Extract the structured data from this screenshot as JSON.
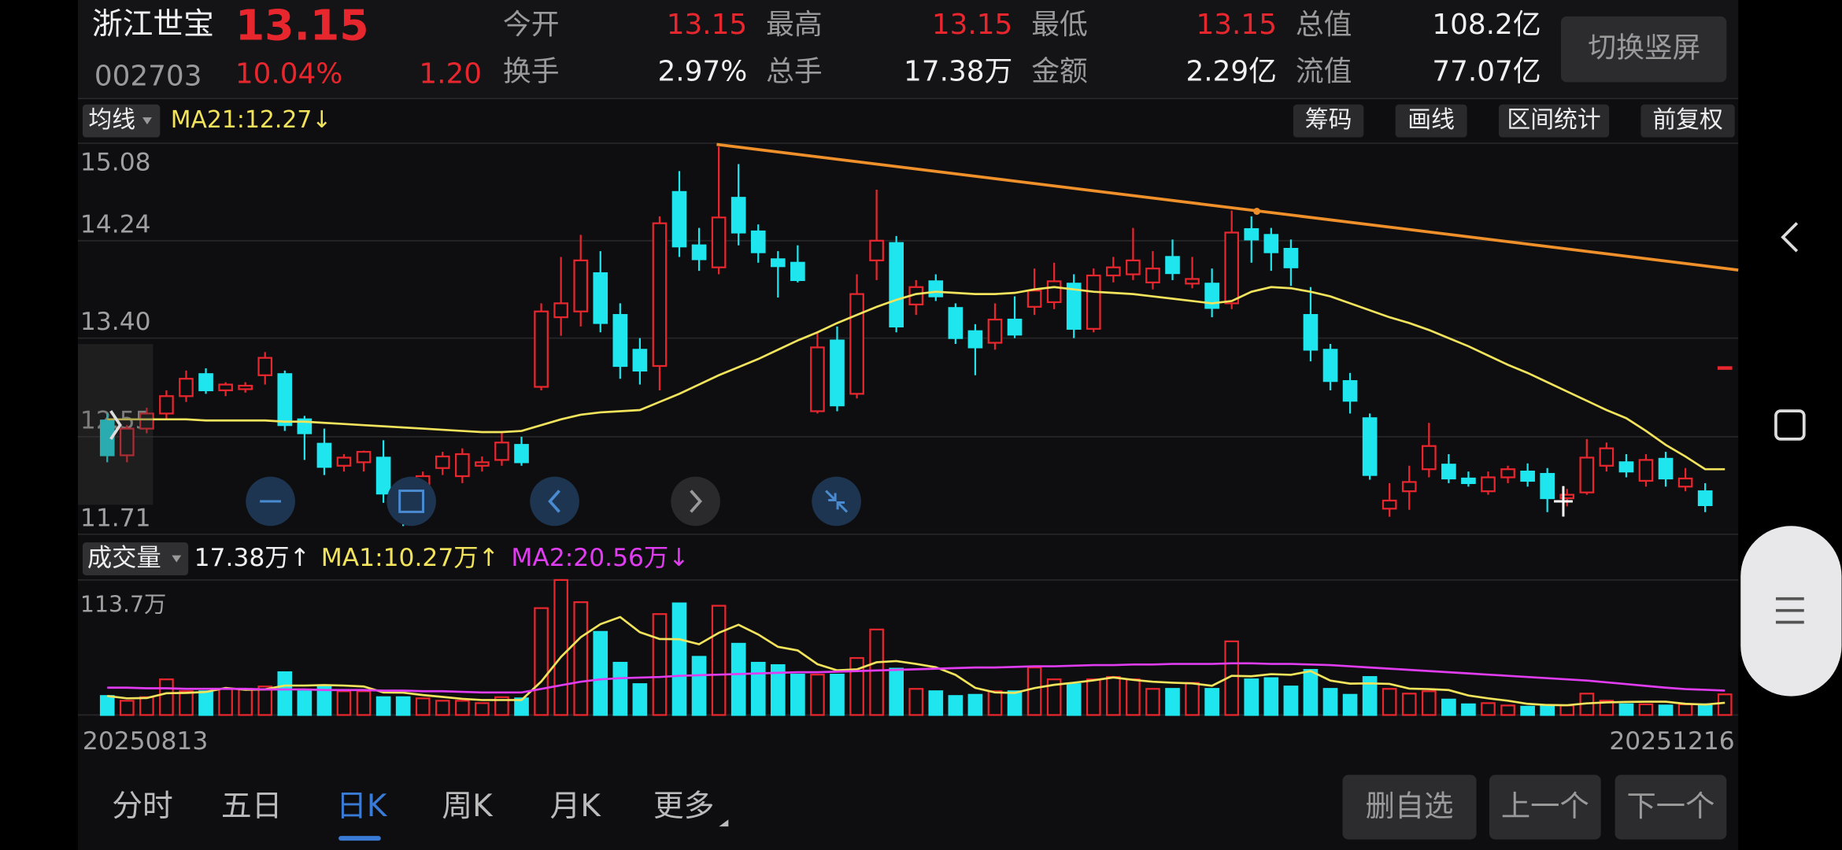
{
  "header": {
    "name": "浙江世宝",
    "price": "13.15",
    "code": "002703",
    "change_pct": "10.04%",
    "change": "1.20",
    "stats": [
      {
        "label": "今开",
        "value": "13.15"
      },
      {
        "label": "最高",
        "value": "13.15"
      },
      {
        "label": "最低",
        "value": "13.15"
      },
      {
        "label": "总值",
        "value": "108.2亿"
      },
      {
        "label": "换手",
        "value": "2.97%"
      },
      {
        "label": "总手",
        "value": "17.38万"
      },
      {
        "label": "金额",
        "value": "2.29亿"
      },
      {
        "label": "流值",
        "value": "77.07亿"
      }
    ],
    "orientation_button": "切换竖屏"
  },
  "toolbar": {
    "ma_selector": "均线",
    "ma_label": "MA21:12.27↓",
    "tools": [
      "筹码",
      "画线",
      "区间统计",
      "前复权"
    ]
  },
  "volume_header": {
    "selector": "成交量",
    "volume": "17.38万↑",
    "ma1": "MA1:10.27万↑",
    "ma2": "MA2:20.56万↓"
  },
  "chart_data": [
    {
      "type": "candlestick",
      "up_color": "#e8262e",
      "down_color": "#1fe6ee",
      "categories": [
        "20250813",
        null,
        null,
        null,
        null,
        null,
        null,
        null,
        null,
        null,
        null,
        null,
        null,
        null,
        null,
        null,
        null,
        null,
        null,
        null,
        null,
        null,
        null,
        null,
        null,
        null,
        null,
        null,
        null,
        null,
        null,
        null,
        null,
        null,
        null,
        null,
        null,
        null,
        null,
        null,
        null,
        null,
        null,
        null,
        null,
        null,
        null,
        null,
        null,
        null,
        null,
        null,
        null,
        null,
        null,
        null,
        null,
        null,
        null,
        null,
        null,
        null,
        null,
        null,
        null,
        null,
        null,
        null,
        null,
        null,
        null,
        null,
        null,
        null,
        null,
        null,
        null,
        null,
        null,
        null,
        null,
        null,
        "20251216"
      ],
      "open": [
        12.69,
        12.39,
        12.62,
        12.75,
        12.9,
        13.09,
        12.95,
        12.96,
        13.08,
        13.09,
        12.7,
        12.49,
        12.3,
        12.33,
        12.37,
        12.08,
        11.91,
        12.28,
        12.21,
        12.3,
        12.35,
        12.48,
        12.98,
        13.58,
        13.63,
        13.96,
        13.6,
        13.3,
        13.16,
        14.66,
        14.2,
        14.01,
        14.61,
        14.32,
        14.08,
        14.05,
        12.77,
        13.38,
        12.92,
        14.07,
        14.22,
        13.69,
        13.89,
        13.66,
        13.46,
        13.36,
        13.56,
        13.67,
        13.71,
        13.87,
        13.48,
        13.94,
        13.95,
        13.88,
        14.1,
        13.87,
        13.87,
        13.7,
        14.34,
        14.29,
        14.17,
        13.6,
        13.3,
        13.03,
        12.71,
        11.93,
        12.08,
        12.27,
        12.31,
        12.19,
        12.08,
        12.2,
        12.25,
        12.23,
        12.02,
        12.07,
        12.3,
        12.33,
        12.17,
        12.36,
        12.12,
        12.08,
        13.15
      ],
      "high": [
        12.75,
        12.65,
        12.8,
        12.95,
        13.12,
        13.14,
        13.02,
        13.02,
        13.28,
        13.12,
        12.73,
        12.62,
        12.4,
        12.43,
        12.52,
        12.12,
        12.25,
        12.42,
        12.45,
        12.38,
        12.6,
        12.55,
        13.7,
        14.1,
        14.29,
        14.15,
        13.7,
        13.4,
        14.45,
        14.84,
        14.35,
        15.05,
        14.9,
        14.38,
        14.15,
        14.2,
        13.45,
        13.5,
        13.95,
        14.68,
        14.28,
        13.9,
        13.95,
        13.7,
        13.52,
        13.7,
        13.76,
        14.0,
        14.05,
        13.95,
        14.0,
        14.1,
        14.35,
        14.15,
        14.25,
        14.1,
        14.0,
        14.5,
        14.45,
        14.35,
        14.25,
        13.84,
        13.35,
        13.1,
        12.75,
        12.15,
        12.3,
        12.67,
        12.4,
        12.25,
        12.25,
        12.3,
        12.32,
        12.28,
        12.1,
        12.53,
        12.5,
        12.4,
        12.4,
        12.42,
        12.28,
        12.15,
        13.15
      ],
      "low": [
        12.33,
        12.33,
        12.58,
        12.7,
        12.85,
        12.92,
        12.9,
        12.93,
        13.0,
        12.6,
        12.35,
        12.22,
        12.25,
        12.25,
        11.98,
        11.78,
        11.88,
        12.22,
        12.15,
        12.25,
        12.3,
        12.3,
        12.95,
        13.42,
        13.5,
        13.45,
        13.05,
        13.0,
        12.95,
        14.1,
        13.98,
        13.95,
        14.2,
        14.05,
        13.75,
        13.88,
        12.75,
        12.77,
        12.88,
        13.9,
        13.45,
        13.6,
        13.72,
        13.35,
        13.08,
        13.3,
        13.4,
        13.6,
        13.65,
        13.4,
        13.45,
        13.88,
        13.9,
        13.82,
        13.9,
        13.83,
        13.58,
        13.65,
        14.05,
        13.98,
        13.85,
        13.2,
        12.95,
        12.75,
        12.18,
        11.86,
        11.92,
        12.2,
        12.15,
        12.12,
        12.05,
        12.15,
        12.12,
        11.9,
        11.95,
        12.05,
        12.25,
        12.2,
        12.12,
        12.12,
        12.08,
        11.9,
        13.15
      ],
      "close": [
        12.39,
        12.62,
        12.75,
        12.9,
        13.05,
        12.95,
        13.0,
        12.99,
        13.23,
        12.65,
        12.58,
        12.29,
        12.37,
        12.42,
        12.06,
        11.86,
        12.21,
        12.38,
        12.4,
        12.33,
        12.5,
        12.33,
        13.63,
        13.7,
        14.07,
        13.53,
        13.16,
        13.12,
        14.39,
        14.19,
        14.08,
        14.44,
        14.31,
        14.14,
        14.02,
        13.9,
        13.32,
        12.82,
        13.78,
        14.24,
        13.5,
        13.84,
        13.76,
        13.4,
        13.32,
        13.56,
        13.43,
        13.81,
        13.89,
        13.48,
        13.94,
        14.01,
        14.07,
        14.0,
        13.96,
        13.91,
        13.66,
        14.31,
        14.25,
        14.14,
        14.01,
        13.3,
        13.03,
        12.86,
        12.22,
        12.0,
        12.16,
        12.47,
        12.19,
        12.15,
        12.2,
        12.27,
        12.17,
        12.02,
        12.05,
        12.37,
        12.45,
        12.25,
        12.35,
        12.19,
        12.19,
        11.96,
        13.15
      ],
      "lines": [
        {
          "color": "#f2e35c",
          "values": [
            12.7,
            12.7,
            12.7,
            12.7,
            12.7,
            12.69,
            12.69,
            12.69,
            12.69,
            12.68,
            12.68,
            12.67,
            12.66,
            12.65,
            12.64,
            12.63,
            12.62,
            12.61,
            12.6,
            12.59,
            12.59,
            12.6,
            12.65,
            12.7,
            12.74,
            12.76,
            12.77,
            12.78,
            12.85,
            12.92,
            13.0,
            13.08,
            13.15,
            13.22,
            13.3,
            13.38,
            13.45,
            13.53,
            13.6,
            13.67,
            13.73,
            13.78,
            13.8,
            13.79,
            13.78,
            13.78,
            13.79,
            13.82,
            13.84,
            13.82,
            13.8,
            13.79,
            13.78,
            13.76,
            13.74,
            13.72,
            13.7,
            13.72,
            13.8,
            13.84,
            13.83,
            13.8,
            13.76,
            13.7,
            13.64,
            13.58,
            13.53,
            13.47,
            13.4,
            13.33,
            13.25,
            13.17,
            13.1,
            13.02,
            12.94,
            12.86,
            12.78,
            12.71,
            12.6,
            12.48,
            12.38,
            12.27,
            12.27
          ]
        }
      ],
      "ylim": [
        11.71,
        15.08
      ],
      "yticks": [
        15.08,
        14.24,
        {
          "value": 13.4,
          "label": "13.40"
        },
        12.55,
        11.71
      ],
      "grid": true
    },
    {
      "type": "bar",
      "values": [
        16,
        12,
        15,
        30,
        20,
        20,
        22,
        22,
        24,
        36,
        20,
        24,
        20,
        20,
        15,
        15,
        14,
        12,
        12,
        10,
        15,
        14,
        90,
        113.7,
        95,
        70,
        44,
        26,
        85,
        94,
        49,
        92,
        60,
        44,
        42,
        34,
        34,
        34,
        48,
        72,
        39,
        22,
        20,
        16,
        17,
        20,
        20,
        40,
        30,
        26,
        30,
        32,
        30,
        22,
        22,
        27,
        22,
        62,
        30,
        31,
        24,
        38,
        22,
        17,
        32,
        22,
        18,
        20,
        13,
        9,
        10,
        8,
        7,
        8,
        8,
        18,
        12,
        9,
        9,
        8,
        9,
        9,
        17.38
      ],
      "lines": [
        {
          "color": "#f2e35c",
          "values": [
            16,
            14,
            14.3,
            18.3,
            18.6,
            19.4,
            22.8,
            21.2,
            21.6,
            24.8,
            24.8,
            25.2,
            24.8,
            24,
            19,
            18.8,
            16.8,
            15.2,
            13.6,
            12.6,
            12.6,
            12.6,
            28.2,
            48.9,
            65.5,
            76.5,
            82.5,
            69.7,
            64,
            63.8,
            59.6,
            69.2,
            76,
            67.8,
            57.4,
            54.4,
            42.8,
            37.6,
            38.4,
            44.4,
            45.4,
            43,
            40.2,
            33.8,
            22.8,
            19,
            18.6,
            22.6,
            25.4,
            27.2,
            29.2,
            31.6,
            29.6,
            28,
            27.2,
            26.6,
            24.6,
            33,
            32.6,
            34.4,
            33.8,
            37,
            29,
            26.4,
            26.6,
            26.2,
            22.2,
            21.8,
            21,
            16.4,
            14,
            12,
            9.4,
            8.4,
            8.2,
            9.8,
            10.6,
            11,
            11.2,
            11.2,
            9.4,
            8.8,
            10.27
          ]
        },
        {
          "color": "#e03cf0",
          "values": [
            23,
            23,
            22.5,
            22.5,
            22,
            22,
            22,
            22,
            21.5,
            21.5,
            21.5,
            21,
            21,
            21,
            20.5,
            20.5,
            20,
            20,
            19.5,
            19,
            19,
            19,
            22,
            25,
            28,
            30,
            31,
            31.5,
            32,
            33,
            33.5,
            34,
            34.5,
            35,
            35.5,
            36,
            36,
            36.5,
            37,
            37.5,
            38,
            38.5,
            39,
            39.5,
            40,
            40,
            40.5,
            41,
            41,
            41.5,
            42,
            42,
            42.5,
            42.5,
            43,
            43,
            43,
            43.5,
            43.5,
            43,
            43,
            42.5,
            42,
            41,
            40,
            39,
            38,
            37,
            36,
            35,
            34,
            33,
            32,
            31,
            30,
            29,
            27.5,
            26,
            24.5,
            23,
            21.8,
            21.2,
            20.56
          ]
        }
      ],
      "ylim": [
        0,
        113.7
      ],
      "yticks": [
        {
          "value": 113.7,
          "label": "113.7万"
        }
      ],
      "grid": true
    }
  ],
  "tabs": {
    "items": [
      "分时",
      "五日",
      "日K",
      "周K",
      "月K",
      "更多"
    ],
    "selected": 2
  },
  "buttons": [
    "删自选",
    "上一个",
    "下一个"
  ]
}
